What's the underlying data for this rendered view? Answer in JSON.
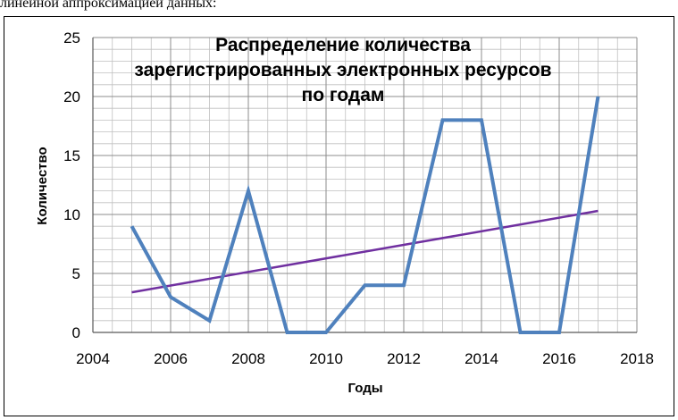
{
  "caption": "линейной аппроксимацией данных:",
  "chart_data": {
    "type": "line",
    "title_lines": [
      "Распределение количества",
      "зарегистрированных  электронных ресурсов",
      "по годам"
    ],
    "xlabel": "Годы",
    "ylabel": "Количество",
    "xlim": [
      2004,
      2018
    ],
    "ylim": [
      0,
      25
    ],
    "x_ticks": [
      2004,
      2006,
      2008,
      2010,
      2012,
      2014,
      2016,
      2018
    ],
    "y_ticks": [
      0,
      5,
      10,
      15,
      20,
      25
    ],
    "grid": true,
    "colors": {
      "series": "#4f81bd",
      "trend": "#7030a0",
      "grid": "#bfbfbf"
    },
    "series": [
      {
        "x": [
          2005,
          2006,
          2007,
          2008,
          2009,
          2010,
          2011,
          2012,
          2013,
          2014,
          2015,
          2016,
          2017
        ],
        "values": [
          9,
          3,
          1,
          12,
          0,
          0,
          4,
          4,
          18,
          18,
          0,
          0,
          20
        ]
      }
    ],
    "trendline": {
      "type": "linear",
      "x": [
        2005,
        2017
      ],
      "values": [
        3.4,
        10.3
      ]
    }
  }
}
